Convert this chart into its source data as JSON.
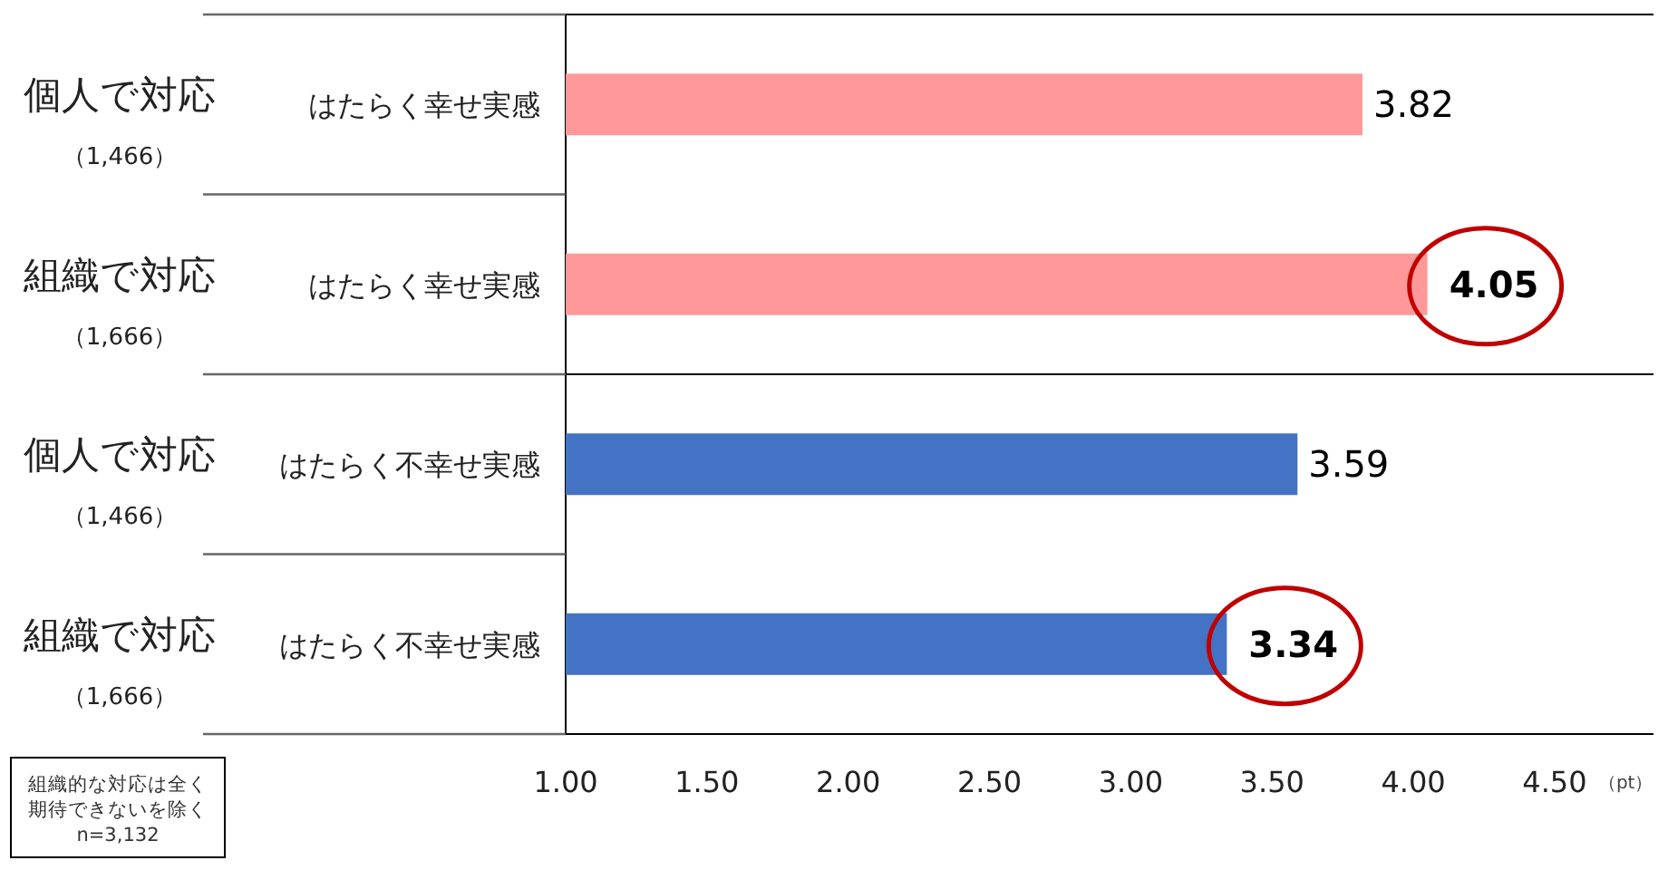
{
  "chart_data": {
    "type": "bar",
    "orientation": "horizontal",
    "categories": [
      "はたらく幸せ実感",
      "はたらく幸せ実感",
      "はたらく不幸せ実感",
      "はたらく不幸せ実感"
    ],
    "values": [
      3.82,
      4.05,
      3.59,
      3.34
    ],
    "colors": [
      "#ff9999",
      "#ff9999",
      "#4472c4",
      "#4472c4"
    ],
    "value_labels": [
      "3.82",
      "4.05",
      "3.59",
      "3.34"
    ],
    "xlim": [
      1.0,
      4.85
    ],
    "xticks": [
      {
        "value": 1.0,
        "label": "1.00"
      },
      {
        "value": 1.5,
        "label": "1.50"
      },
      {
        "value": 2.0,
        "label": "2.00"
      },
      {
        "value": 2.5,
        "label": "2.50"
      },
      {
        "value": 3.0,
        "label": "3.00"
      },
      {
        "value": 3.5,
        "label": "3.50"
      },
      {
        "value": 4.0,
        "label": "4.00"
      },
      {
        "value": 4.5,
        "label": "4.50"
      }
    ],
    "xlabel": "（pt）",
    "grid": false,
    "annotations": [
      "個人で対応",
      "（1,466）",
      "組織で対応",
      "（1,666）",
      "個人で対応",
      "（1,466）",
      "組織で対応",
      "（1,666）",
      "組織的な対応は全く",
      "期待できないを除く",
      "n=3,132"
    ]
  }
}
